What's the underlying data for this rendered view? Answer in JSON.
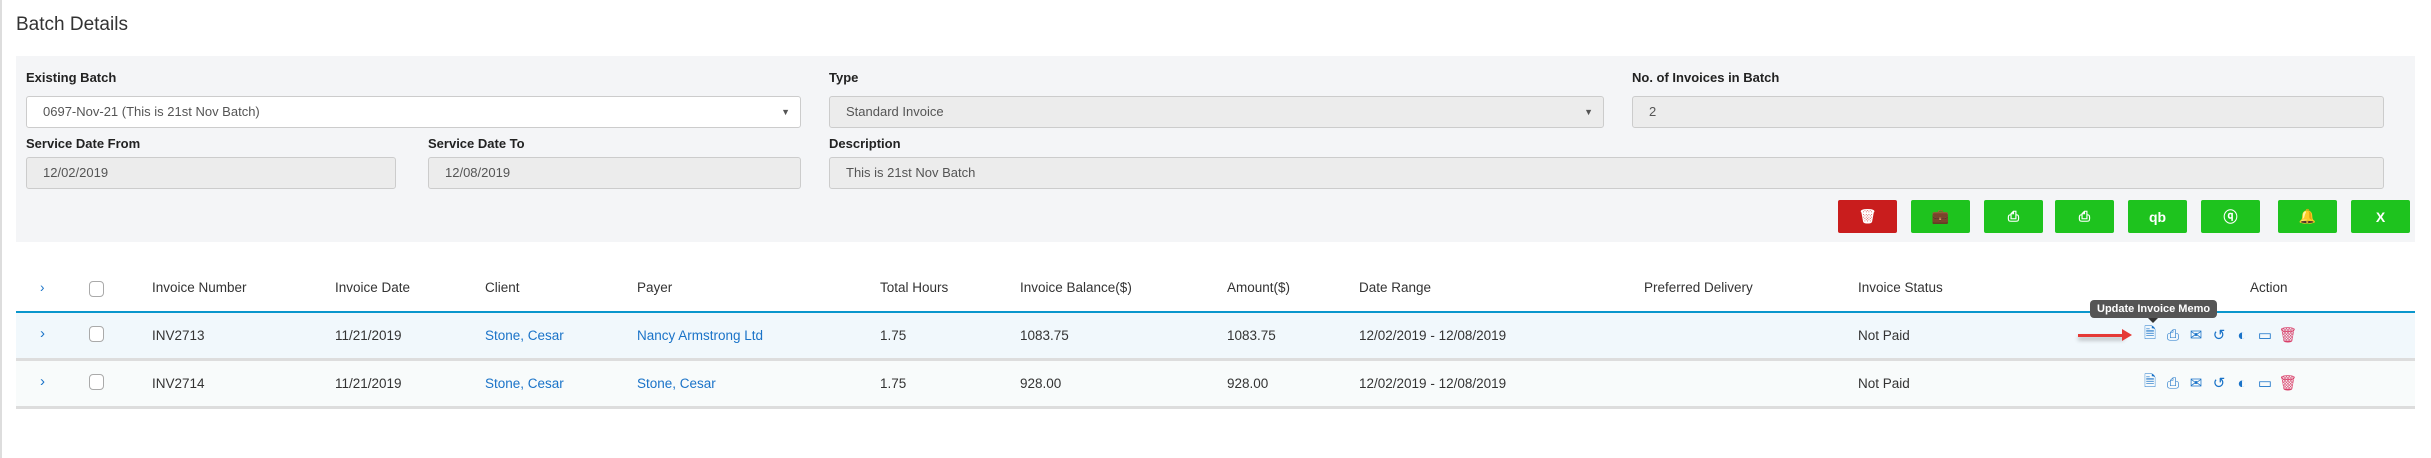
{
  "page": {
    "title": "Batch Details"
  },
  "form": {
    "existing_batch": {
      "label": "Existing Batch",
      "value": "0697-Nov-21 (This is 21st Nov Batch)"
    },
    "type": {
      "label": "Type",
      "value": "Standard Invoice"
    },
    "invoice_count": {
      "label": "No. of Invoices in Batch",
      "value": "2"
    },
    "service_date_from": {
      "label": "Service Date From",
      "value": "12/02/2019"
    },
    "service_date_to": {
      "label": "Service Date To",
      "value": "12/08/2019"
    },
    "description": {
      "label": "Description",
      "value": "This is 21st Nov Batch"
    }
  },
  "toolbar": {
    "buttons": [
      {
        "icon": "trash-icon",
        "glyph": "🗑",
        "color": "#c91d1d"
      },
      {
        "icon": "briefcase-icon",
        "glyph": "💼",
        "color": "#1ec31e"
      },
      {
        "icon": "print-icon",
        "glyph": "⎙",
        "color": "#1ec31e"
      },
      {
        "icon": "print-icon",
        "glyph": "⎙",
        "color": "#1ec31e"
      },
      {
        "icon": "quickbooks-icon",
        "glyph": "qb",
        "color": "#1ec31e"
      },
      {
        "icon": "quickbooks-circle-icon",
        "glyph": "ⓠ",
        "color": "#1ec31e"
      },
      {
        "icon": "bell-icon",
        "glyph": "🔔",
        "color": "#1ec31e"
      },
      {
        "icon": "excel-icon",
        "glyph": "X",
        "color": "#1ec31e"
      }
    ]
  },
  "table": {
    "columns": [
      "Invoice Number",
      "Invoice Date",
      "Client",
      "Payer",
      "Total Hours",
      "Invoice Balance($)",
      "Amount($)",
      "Date Range",
      "Preferred Delivery",
      "Invoice Status",
      "Action"
    ],
    "rows": [
      {
        "invoice_number": "INV2713",
        "invoice_date": "11/21/2019",
        "client": "Stone, Cesar",
        "payer": "Nancy Armstrong Ltd",
        "total_hours": "1.75",
        "balance": "1083.75",
        "amount": "1083.75",
        "date_range": "12/02/2019 - 12/08/2019",
        "preferred_delivery": "",
        "status": "Not Paid"
      },
      {
        "invoice_number": "INV2714",
        "invoice_date": "11/21/2019",
        "client": "Stone, Cesar",
        "payer": "Stone, Cesar",
        "total_hours": "1.75",
        "balance": "928.00",
        "amount": "928.00",
        "date_range": "12/02/2019 - 12/08/2019",
        "preferred_delivery": "",
        "status": "Not Paid"
      }
    ],
    "action_icons": [
      "memo-icon",
      "print-icon",
      "email-icon",
      "undo-icon",
      "contrast-icon",
      "credit-card-icon",
      "trash-icon"
    ]
  },
  "tooltip": {
    "text": "Update Invoice Memo"
  },
  "colors": {
    "accent": "#1a73c8",
    "success": "#1ec31e",
    "danger": "#c91d1d",
    "header_line": "#0a96cc"
  }
}
